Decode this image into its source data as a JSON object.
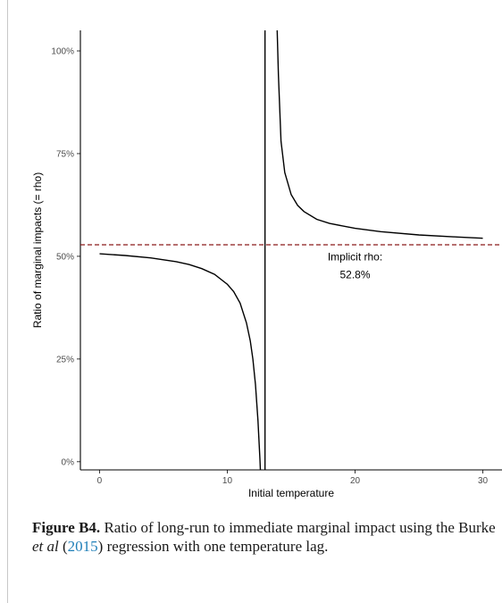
{
  "chart_data": {
    "type": "line",
    "xlabel": "Initial temperature",
    "ylabel": "Ratio of marginal impacts (= rho)",
    "x_ticks": [
      0,
      10,
      20,
      30
    ],
    "x_tick_labels": [
      "0",
      "10",
      "20",
      "30"
    ],
    "y_ticks": [
      0,
      25,
      50,
      75,
      100
    ],
    "y_tick_labels": [
      "0%",
      "25%",
      "50%",
      "75%",
      "100%"
    ],
    "xlim": [
      -1.5,
      31.5
    ],
    "ylim": [
      -2,
      105
    ],
    "grid": false,
    "series": [
      {
        "segment": "left branch",
        "x": [
          0,
          2,
          4,
          6,
          7,
          8,
          9,
          10,
          10.5,
          11,
          11.5,
          11.8,
          12,
          12.2,
          12.4,
          12.55,
          12.7,
          12.8
        ],
        "y": [
          50.6,
          50.2,
          49.6,
          48.7,
          48.0,
          47.0,
          45.6,
          43.2,
          41.4,
          38.6,
          33.8,
          29.4,
          25.0,
          18.8,
          10.0,
          0.6,
          -10,
          -20
        ]
      },
      {
        "segment": "right branch",
        "x": [
          13.9,
          14.0,
          14.2,
          14.5,
          15,
          15.5,
          16,
          17,
          18,
          20,
          22,
          25,
          28,
          30
        ],
        "y": [
          105,
          94.1,
          78.0,
          70.4,
          65.0,
          62.4,
          60.9,
          59.0,
          58.0,
          56.8,
          56.0,
          55.2,
          54.7,
          54.4
        ]
      }
    ],
    "vertical_line_x": 12.95,
    "reference_line": {
      "y": 52.8,
      "color": "#8b1a1a",
      "style": "dashed"
    },
    "annotation": {
      "line1": "Implicit rho:",
      "line2": "52.8%",
      "x": 20,
      "y": 49
    }
  },
  "caption": {
    "label": "Figure B4.",
    "text1": " Ratio of long-run to immediate marginal impact using the Burke ",
    "etal": "et al",
    "text2": " (",
    "year": "2015",
    "text3": ") regression with one temperature lag."
  }
}
